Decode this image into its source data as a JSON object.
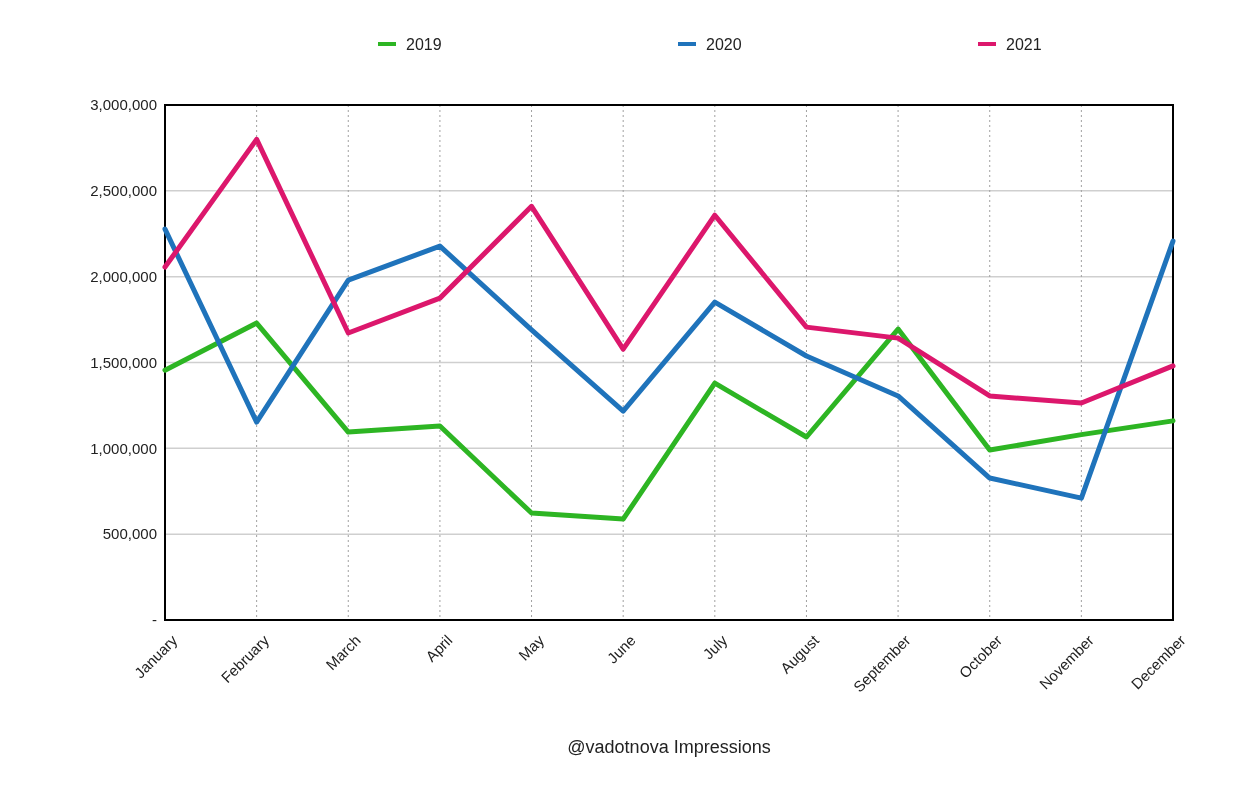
{
  "chart_data": {
    "type": "line",
    "title": "@vadotnova Impressions",
    "categories": [
      "January",
      "February",
      "March",
      "April",
      "May",
      "June",
      "July",
      "August",
      "September",
      "October",
      "November",
      "December"
    ],
    "series": [
      {
        "name": "2019",
        "color": "#2db523",
        "values": [
          1455000,
          1730000,
          1095000,
          1130000,
          623000,
          588000,
          1380000,
          1066000,
          1695000,
          990000,
          1080000,
          1160000
        ]
      },
      {
        "name": "2020",
        "color": "#1f73bb",
        "values": [
          2277000,
          1153000,
          1980000,
          2178000,
          1690000,
          1217000,
          1852000,
          1538000,
          1305000,
          827000,
          710000,
          2207000
        ]
      },
      {
        "name": "2021",
        "color": "#dc176c",
        "values": [
          2056000,
          2800000,
          1672000,
          1875000,
          2410000,
          1578000,
          2358000,
          1706000,
          1642000,
          1305000,
          1264000,
          1480000
        ]
      }
    ],
    "ylim": [
      0,
      3000000
    ],
    "yticks": [
      {
        "value": 0,
        "label": "-"
      },
      {
        "value": 500000,
        "label": "500,000"
      },
      {
        "value": 1000000,
        "label": "1,000,000"
      },
      {
        "value": 1500000,
        "label": "1,500,000"
      },
      {
        "value": 2000000,
        "label": "2,000,000"
      },
      {
        "value": 2500000,
        "label": "2,500,000"
      },
      {
        "value": 3000000,
        "label": "3,000,000"
      }
    ],
    "grid": true,
    "legend": "top",
    "marker": "none",
    "line_style": "solid"
  }
}
